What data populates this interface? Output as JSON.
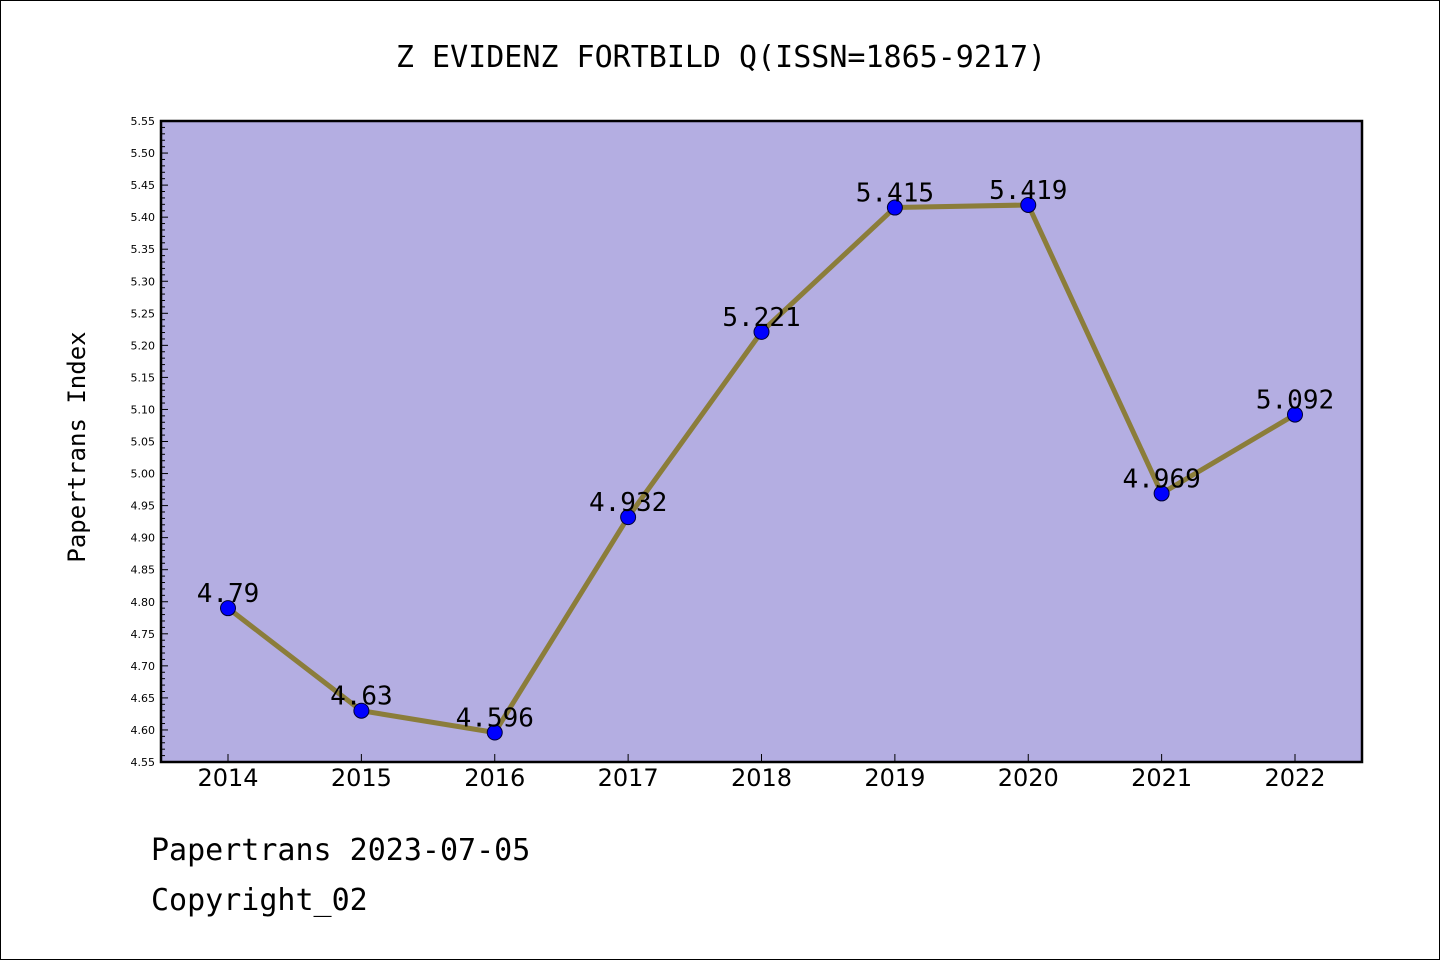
{
  "chart_data": {
    "type": "line",
    "title": "Z EVIDENZ FORTBILD Q(ISSN=1865-9217)",
    "xlabel": "",
    "ylabel": "Papertrans Index",
    "categories": [
      "2014",
      "2015",
      "2016",
      "2017",
      "2018",
      "2019",
      "2020",
      "2021",
      "2022"
    ],
    "series": [
      {
        "values": [
          4.79,
          4.63,
          4.596,
          4.932,
          5.221,
          5.415,
          5.419,
          4.969,
          5.092
        ],
        "labels": [
          "4.79",
          "4.63",
          "4.596",
          "4.932",
          "5.221",
          "5.415",
          "5.419",
          "4.969",
          "5.092"
        ]
      }
    ],
    "ylim": [
      4.55,
      5.55
    ],
    "yticks": [
      "4.55",
      "4.60",
      "4.65",
      "4.70",
      "4.75",
      "4.80",
      "4.85",
      "4.90",
      "4.95",
      "5.00",
      "5.05",
      "5.10",
      "5.15",
      "5.20",
      "5.25",
      "5.30",
      "5.35",
      "5.40",
      "5.45",
      "5.50",
      "5.55"
    ],
    "grid": false,
    "legend": "none",
    "colors": {
      "plot_background": "#b4aee2",
      "line": "#8b7d3a",
      "marker": "#0000ff"
    }
  },
  "footer": {
    "line1": "Papertrans 2023-07-05",
    "line2": "Copyright_02"
  }
}
